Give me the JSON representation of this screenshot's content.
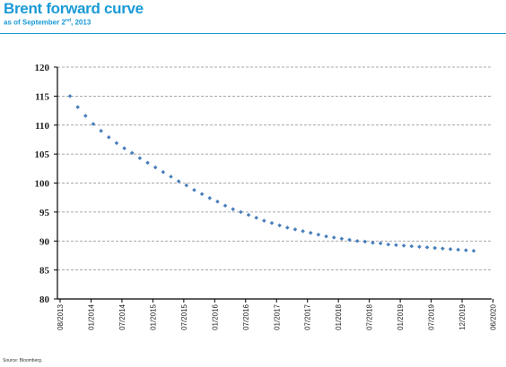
{
  "header": {
    "title": "Brent forward curve",
    "subtitle_main": "as of September 2",
    "subtitle_sup": "nd",
    "subtitle_tail": ", 2013"
  },
  "footer": {
    "source": "Source: Bloomberg."
  },
  "chart_data": {
    "type": "scatter",
    "title": "Brent forward curve",
    "xlabel": "",
    "ylabel": "",
    "ylim": [
      80,
      120
    ],
    "yticks": [
      80,
      85,
      90,
      95,
      100,
      105,
      110,
      115,
      120
    ],
    "grid": true,
    "marker_color": "#4a7ebb",
    "x_tick_labels": [
      "08/2013",
      "01/2014",
      "07/2014",
      "01/2015",
      "07/2015",
      "01/2016",
      "07/2016",
      "01/2017",
      "07/2017",
      "01/2018",
      "07/2018",
      "01/2019",
      "07/2019",
      "12/2019",
      "06/2020"
    ],
    "series": [
      {
        "values": [
          115.0,
          113.1,
          111.6,
          110.2,
          109.0,
          107.9,
          106.9,
          106.0,
          105.2,
          104.3,
          103.5,
          102.7,
          101.9,
          101.1,
          100.3,
          99.6,
          98.8,
          98.1,
          97.4,
          96.8,
          96.1,
          95.5,
          95.0,
          94.5,
          94.0,
          93.5,
          93.1,
          92.7,
          92.3,
          92.0,
          91.7,
          91.4,
          91.1,
          90.8,
          90.6,
          90.4,
          90.2,
          90.0,
          89.9,
          89.7,
          89.6,
          89.4,
          89.3,
          89.2,
          89.1,
          89.0,
          88.9,
          88.8,
          88.7,
          88.6,
          88.5,
          88.4,
          88.3
        ]
      }
    ]
  }
}
